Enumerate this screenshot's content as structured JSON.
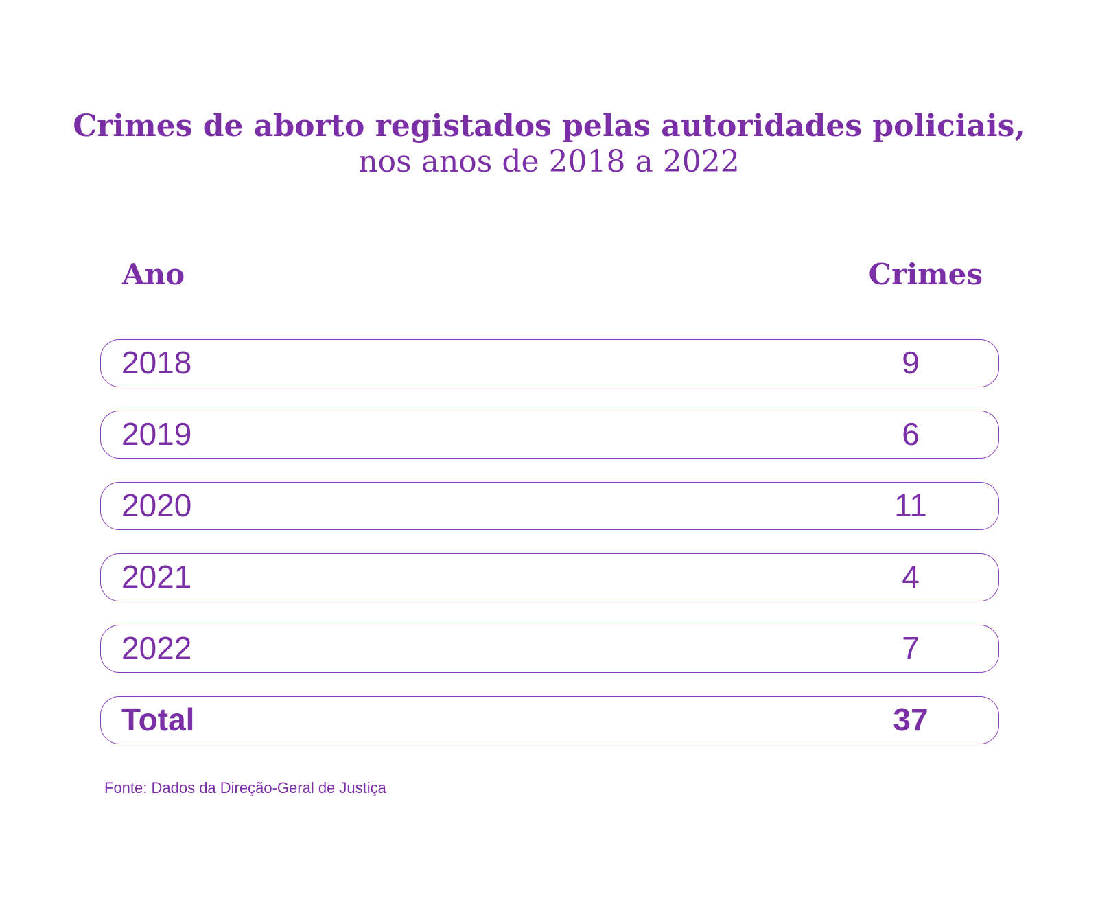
{
  "title": {
    "line1": "Crimes de aborto registados pelas autoridades policiais,",
    "line2": "nos anos de 2018 a 2022"
  },
  "headers": {
    "year": "Ano",
    "crimes": "Crimes"
  },
  "rows": [
    {
      "year": "2018",
      "value": "9"
    },
    {
      "year": "2019",
      "value": "6"
    },
    {
      "year": "2020",
      "value": "11"
    },
    {
      "year": "2021",
      "value": "4"
    },
    {
      "year": "2022",
      "value": "7"
    }
  ],
  "total": {
    "label": "Total",
    "value": "37"
  },
  "source": "Fonte: Dados da Direção-Geral de Justiça",
  "colors": {
    "accent": "#7b2fa6",
    "background": "#ffffff"
  },
  "chart_data": {
    "type": "table",
    "title": "Crimes de aborto registados pelas autoridades policiais, nos anos de 2018 a 2022",
    "columns": [
      "Ano",
      "Crimes"
    ],
    "categories": [
      "2018",
      "2019",
      "2020",
      "2021",
      "2022"
    ],
    "values": [
      9,
      6,
      11,
      4,
      7
    ],
    "total": 37,
    "source": "Fonte: Dados da Direção-Geral de Justiça"
  }
}
